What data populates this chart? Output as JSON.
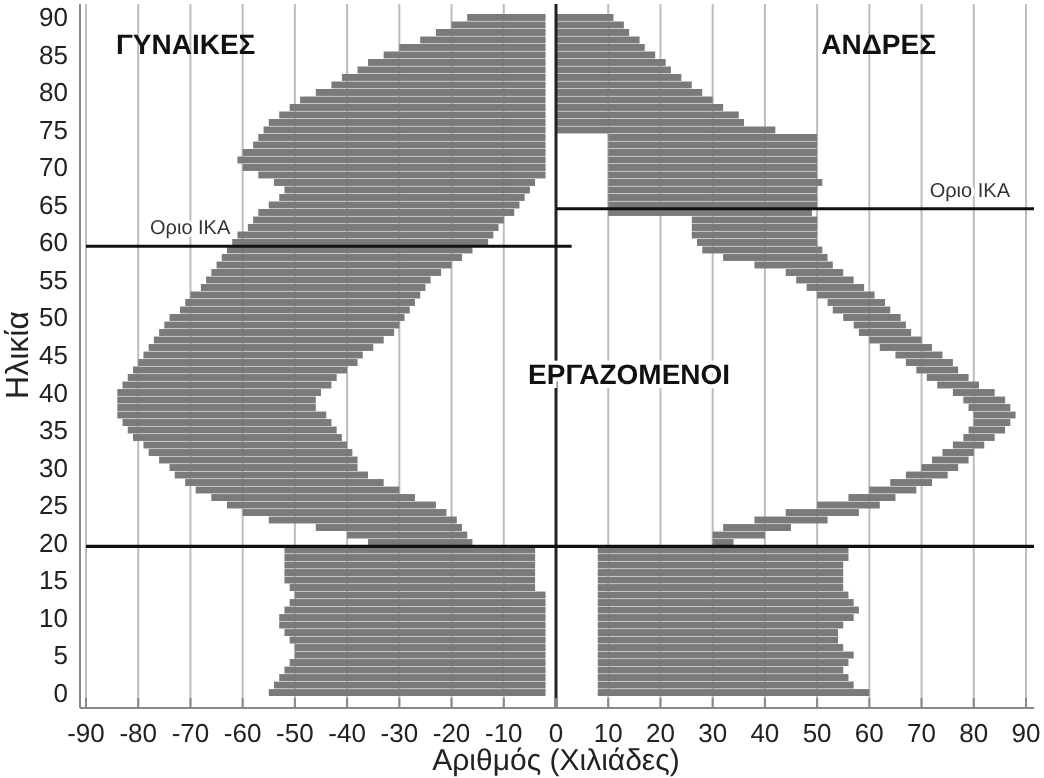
{
  "chart_data": {
    "type": "bar",
    "orientation": "horizontal",
    "xlabel": "Αριθμός (Χιλιάδες)",
    "ylabel": "Ηλικία",
    "categories": [
      "90",
      null,
      null,
      null,
      null,
      "85",
      null,
      null,
      null,
      null,
      "80",
      null,
      null,
      null,
      null,
      "75",
      null,
      null,
      null,
      null,
      "70",
      null,
      null,
      null,
      null,
      "65",
      null,
      null,
      null,
      null,
      "60",
      null,
      null,
      null,
      null,
      "55",
      null,
      null,
      null,
      null,
      "50",
      null,
      null,
      null,
      null,
      "45",
      null,
      null,
      null,
      null,
      "40",
      null,
      null,
      null,
      null,
      "35",
      null,
      null,
      null,
      null,
      "30",
      null,
      null,
      null,
      null,
      "25",
      null,
      null,
      null,
      null,
      "20",
      null,
      null,
      null,
      null,
      "15",
      null,
      null,
      null,
      null,
      "10",
      null,
      null,
      null,
      null,
      "5",
      null,
      null,
      null,
      null,
      "0"
    ],
    "series": [
      {
        "name": "ΓΥΝΑΙΚΕΣ",
        "color": "#7a7a7a",
        "values": [
          -15,
          -18,
          -21,
          -24,
          -28,
          -31,
          -34,
          -36,
          -39,
          -41,
          -44,
          -47,
          -49,
          -51,
          -53,
          -54,
          -55,
          -56,
          -58,
          -59,
          -58,
          -55,
          -50,
          -47,
          -47,
          -48,
          -49,
          -48,
          -48,
          -49,
          -49,
          -47,
          -46,
          -45,
          -44,
          -43,
          -43,
          -44,
          -44,
          -44,
          -45,
          -45,
          -45,
          -44,
          -43,
          -42,
          -42,
          -41,
          -40,
          -40,
          -39,
          -38,
          -38,
          -40,
          -40,
          -40,
          -40,
          -39,
          -39,
          -38,
          -36,
          -37,
          -38,
          -39,
          -39,
          -40,
          -39,
          -36,
          -28,
          -23,
          -20,
          -48,
          -48,
          -48,
          -48,
          -48,
          -47,
          -48,
          -49,
          -50,
          -51,
          -51,
          -50,
          -49,
          -48,
          -48,
          -49,
          -50,
          -51,
          -52,
          -53
        ],
        "base": [
          -2,
          -2,
          -2,
          -2,
          -2,
          -2,
          -2,
          -2,
          -2,
          -2,
          -2,
          -2,
          -2,
          -2,
          -2,
          -2,
          -2,
          -2,
          -2,
          -2,
          -2,
          -2,
          -4,
          -5,
          -6,
          -7,
          -8,
          -10,
          -11,
          -12,
          -13,
          -16,
          -18,
          -20,
          -22,
          -24,
          -25,
          -26,
          -27,
          -28,
          -29,
          -30,
          -31,
          -33,
          -35,
          -37,
          -38,
          -40,
          -42,
          -43,
          -45,
          -46,
          -46,
          -44,
          -43,
          -42,
          -41,
          -40,
          -39,
          -38,
          -38,
          -36,
          -33,
          -30,
          -27,
          -23,
          -21,
          -19,
          -18,
          -17,
          -16,
          -4,
          -4,
          -4,
          -4,
          -4,
          -4,
          -2,
          -2,
          -2,
          -2,
          -2,
          -2,
          -2,
          -2,
          -2,
          -2,
          -2,
          -2,
          -2,
          -2
        ]
      },
      {
        "name": "ΑΝΔΡΕΣ",
        "color": "#7a7a7a",
        "values": [
          11,
          13,
          14,
          16,
          17,
          19,
          21,
          22,
          24,
          26,
          28,
          30,
          32,
          35,
          36,
          42,
          40,
          40,
          40,
          40,
          40,
          40,
          41,
          40,
          40,
          40,
          39,
          24,
          24,
          24,
          23,
          23,
          20,
          15,
          11,
          11,
          11,
          11,
          11,
          11,
          11,
          10,
          10,
          10,
          10,
          9,
          9,
          8,
          8,
          8,
          8,
          8,
          8,
          8,
          7,
          7,
          6,
          6,
          6,
          7,
          7,
          8,
          8,
          9,
          9,
          12,
          14,
          14,
          13,
          10,
          4,
          48,
          48,
          47,
          47,
          47,
          47,
          48,
          49,
          50,
          49,
          47,
          46,
          46,
          47,
          49,
          48,
          47,
          48,
          49,
          52
        ],
        "base": [
          0,
          0,
          0,
          0,
          0,
          0,
          0,
          0,
          0,
          0,
          0,
          0,
          0,
          0,
          0,
          0,
          10,
          10,
          10,
          10,
          10,
          10,
          10,
          10,
          10,
          10,
          10,
          26,
          26,
          26,
          27,
          28,
          32,
          38,
          44,
          46,
          48,
          50,
          52,
          53,
          55,
          57,
          58,
          60,
          62,
          65,
          67,
          69,
          71,
          73,
          76,
          78,
          79,
          80,
          80,
          79,
          78,
          76,
          74,
          72,
          70,
          67,
          64,
          60,
          56,
          50,
          44,
          38,
          32,
          30,
          30,
          8,
          8,
          8,
          8,
          8,
          8,
          8,
          8,
          8,
          8,
          8,
          8,
          8,
          8,
          8,
          8,
          8,
          8,
          8,
          8
        ]
      }
    ],
    "xlim": [
      -90,
      90
    ],
    "xticks": [
      -90,
      -80,
      -70,
      -60,
      -50,
      -40,
      -30,
      -20,
      -10,
      0,
      10,
      20,
      30,
      40,
      50,
      60,
      70,
      80,
      90
    ],
    "grid": "x",
    "ref_lines": [
      {
        "axis": "y",
        "value": "60",
        "label": "Οριο ΙΚΑ"
      },
      {
        "axis": "y",
        "value": "65",
        "label": "Οριο ΙΚΑ"
      },
      {
        "axis": "y",
        "value": "20",
        "label": null
      }
    ],
    "annotations": [
      "ΕΡΓΑΖΟΜΕΝΟΙ"
    ]
  }
}
